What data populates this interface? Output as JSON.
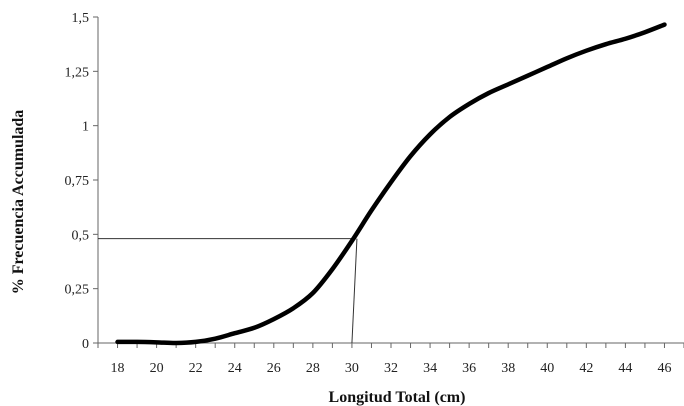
{
  "chart_data": {
    "type": "line",
    "title": "",
    "xlabel": "Longitud Total (cm)",
    "ylabel": "% Frecuencia Accumulada",
    "xlim": [
      17,
      47
    ],
    "ylim": [
      0,
      1.5
    ],
    "x_ticks": [
      18,
      20,
      22,
      24,
      26,
      28,
      30,
      32,
      34,
      36,
      38,
      40,
      42,
      44,
      46
    ],
    "x_tick_labels": [
      "18",
      "20",
      "22",
      "24",
      "26",
      "28",
      "30",
      "32",
      "34",
      "36",
      "38",
      "40",
      "42",
      "44",
      "46"
    ],
    "y_ticks": [
      0,
      0.25,
      0.5,
      0.75,
      1,
      1.25,
      1.5
    ],
    "y_tick_labels": [
      "0",
      "0,25",
      "0,5",
      "0,75",
      "1",
      "1,25",
      "1,5"
    ],
    "grid": false,
    "legend": "none",
    "series": [
      {
        "color": "#000000",
        "x": [
          18,
          19,
          20,
          21,
          22,
          23,
          24,
          25,
          26,
          27,
          28,
          29,
          30,
          31,
          32,
          33,
          34,
          35,
          36,
          37,
          38,
          39,
          40,
          41,
          42,
          43,
          44,
          45,
          46
        ],
        "y": [
          0.005,
          0.005,
          0.003,
          0.0,
          0.005,
          0.02,
          0.045,
          0.07,
          0.11,
          0.16,
          0.23,
          0.34,
          0.47,
          0.61,
          0.74,
          0.86,
          0.96,
          1.04,
          1.1,
          1.15,
          1.19,
          1.23,
          1.27,
          1.31,
          1.345,
          1.375,
          1.4,
          1.43,
          1.465
        ]
      }
    ],
    "reference_lines": [
      {
        "type": "horizontal",
        "y": 0.48,
        "x_from": 17,
        "x_to": 30.2
      },
      {
        "type": "vertical",
        "x": 30.0,
        "y_from": 0,
        "y_to": 0.48
      }
    ]
  }
}
